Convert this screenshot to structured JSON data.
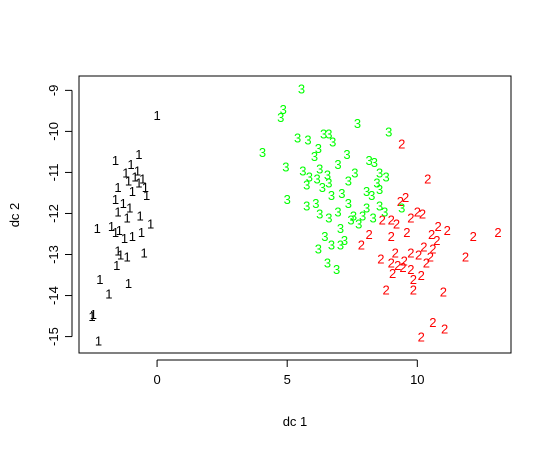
{
  "chart_data": {
    "type": "scatter",
    "title": "",
    "xlabel": "dc 1",
    "ylabel": "dc 2",
    "xlim": [
      -3.0,
      13.6
    ],
    "ylim": [
      -15.4,
      -8.65
    ],
    "xticks": [
      0,
      5,
      10
    ],
    "yticks": [
      -15,
      -14,
      -13,
      -12,
      -11,
      -10,
      -9
    ],
    "grid": false,
    "legend": "none",
    "marker": "class label",
    "series": [
      {
        "label": "1",
        "color": "#000000",
        "points": [
          [
            0.0,
            -9.6
          ],
          [
            -1.6,
            -10.7
          ],
          [
            -0.7,
            -10.55
          ],
          [
            -1.0,
            -10.8
          ],
          [
            -0.75,
            -10.95
          ],
          [
            -1.2,
            -11.0
          ],
          [
            -1.1,
            -11.2
          ],
          [
            -0.55,
            -11.15
          ],
          [
            -0.7,
            -11.25
          ],
          [
            -0.45,
            -11.35
          ],
          [
            -0.85,
            -11.1
          ],
          [
            -1.5,
            -11.35
          ],
          [
            -0.95,
            -11.45
          ],
          [
            -0.4,
            -11.55
          ],
          [
            -1.6,
            -11.65
          ],
          [
            -1.3,
            -11.75
          ],
          [
            -1.05,
            -11.85
          ],
          [
            -1.5,
            -11.95
          ],
          [
            -1.15,
            -12.1
          ],
          [
            -0.65,
            -12.05
          ],
          [
            -2.3,
            -12.35
          ],
          [
            -1.75,
            -12.3
          ],
          [
            -1.45,
            -12.4
          ],
          [
            -1.6,
            -12.45
          ],
          [
            -1.25,
            -12.6
          ],
          [
            -0.25,
            -12.25
          ],
          [
            -0.6,
            -12.45
          ],
          [
            -0.95,
            -12.55
          ],
          [
            -1.5,
            -12.9
          ],
          [
            -1.4,
            -13.0
          ],
          [
            -1.15,
            -13.05
          ],
          [
            -0.5,
            -12.95
          ],
          [
            -1.55,
            -13.25
          ],
          [
            -2.2,
            -13.6
          ],
          [
            -1.85,
            -13.95
          ],
          [
            -1.1,
            -13.7
          ],
          [
            -2.45,
            -14.45
          ],
          [
            -2.5,
            -14.5
          ],
          [
            -2.25,
            -15.1
          ]
        ]
      },
      {
        "label": "2",
        "color": "#ff0000",
        "points": [
          [
            9.4,
            -10.3
          ],
          [
            10.4,
            -11.15
          ],
          [
            9.55,
            -11.6
          ],
          [
            9.35,
            -11.7
          ],
          [
            10.0,
            -11.95
          ],
          [
            9.0,
            -12.15
          ],
          [
            10.2,
            -12.0
          ],
          [
            9.75,
            -12.1
          ],
          [
            9.2,
            -12.25
          ],
          [
            8.65,
            -12.15
          ],
          [
            10.8,
            -12.3
          ],
          [
            11.15,
            -12.4
          ],
          [
            10.55,
            -12.5
          ],
          [
            9.6,
            -12.45
          ],
          [
            8.15,
            -12.5
          ],
          [
            9.0,
            -12.55
          ],
          [
            10.75,
            -12.65
          ],
          [
            12.15,
            -12.55
          ],
          [
            13.1,
            -12.45
          ],
          [
            7.85,
            -12.75
          ],
          [
            10.25,
            -12.8
          ],
          [
            10.6,
            -12.85
          ],
          [
            9.15,
            -12.95
          ],
          [
            9.75,
            -12.95
          ],
          [
            10.05,
            -13.0
          ],
          [
            10.5,
            -13.05
          ],
          [
            11.85,
            -13.05
          ],
          [
            8.6,
            -13.1
          ],
          [
            9.5,
            -13.15
          ],
          [
            9.0,
            -13.2
          ],
          [
            9.25,
            -13.25
          ],
          [
            9.45,
            -13.3
          ],
          [
            10.35,
            -13.2
          ],
          [
            9.75,
            -13.35
          ],
          [
            9.05,
            -13.45
          ],
          [
            10.15,
            -13.5
          ],
          [
            9.85,
            -13.6
          ],
          [
            8.8,
            -13.85
          ],
          [
            9.85,
            -13.85
          ],
          [
            11.0,
            -13.9
          ],
          [
            10.6,
            -14.65
          ],
          [
            11.05,
            -14.8
          ],
          [
            10.15,
            -15.0
          ]
        ]
      },
      {
        "label": "3",
        "color": "#00ff00",
        "points": [
          [
            5.55,
            -8.95
          ],
          [
            4.85,
            -9.45
          ],
          [
            4.75,
            -9.65
          ],
          [
            7.7,
            -9.8
          ],
          [
            8.9,
            -10.0
          ],
          [
            5.4,
            -10.15
          ],
          [
            6.4,
            -10.05
          ],
          [
            6.6,
            -10.05
          ],
          [
            5.8,
            -10.2
          ],
          [
            6.75,
            -10.25
          ],
          [
            6.2,
            -10.4
          ],
          [
            4.05,
            -10.5
          ],
          [
            7.3,
            -10.55
          ],
          [
            6.05,
            -10.6
          ],
          [
            8.15,
            -10.7
          ],
          [
            8.35,
            -10.75
          ],
          [
            6.95,
            -10.8
          ],
          [
            4.95,
            -10.85
          ],
          [
            6.25,
            -10.9
          ],
          [
            5.6,
            -10.95
          ],
          [
            7.6,
            -11.0
          ],
          [
            8.55,
            -11.0
          ],
          [
            6.55,
            -11.05
          ],
          [
            5.85,
            -11.1
          ],
          [
            6.15,
            -11.15
          ],
          [
            8.8,
            -11.1
          ],
          [
            7.35,
            -11.2
          ],
          [
            6.6,
            -11.25
          ],
          [
            8.45,
            -11.25
          ],
          [
            5.75,
            -11.3
          ],
          [
            6.35,
            -11.35
          ],
          [
            8.55,
            -11.4
          ],
          [
            8.05,
            -11.45
          ],
          [
            7.1,
            -11.5
          ],
          [
            6.7,
            -11.55
          ],
          [
            8.25,
            -11.55
          ],
          [
            5.0,
            -11.65
          ],
          [
            7.35,
            -11.75
          ],
          [
            6.1,
            -11.75
          ],
          [
            5.75,
            -11.8
          ],
          [
            8.55,
            -11.8
          ],
          [
            8.05,
            -11.85
          ],
          [
            9.4,
            -11.85
          ],
          [
            6.95,
            -11.95
          ],
          [
            8.75,
            -11.95
          ],
          [
            6.25,
            -12.0
          ],
          [
            7.55,
            -12.05
          ],
          [
            7.9,
            -12.05
          ],
          [
            6.6,
            -12.1
          ],
          [
            8.3,
            -12.1
          ],
          [
            7.45,
            -12.15
          ],
          [
            7.75,
            -12.25
          ],
          [
            7.05,
            -12.35
          ],
          [
            6.45,
            -12.55
          ],
          [
            6.7,
            -12.75
          ],
          [
            7.05,
            -12.75
          ],
          [
            6.2,
            -12.85
          ],
          [
            6.55,
            -13.2
          ],
          [
            6.9,
            -13.35
          ],
          [
            7.2,
            -12.65
          ]
        ]
      }
    ]
  }
}
